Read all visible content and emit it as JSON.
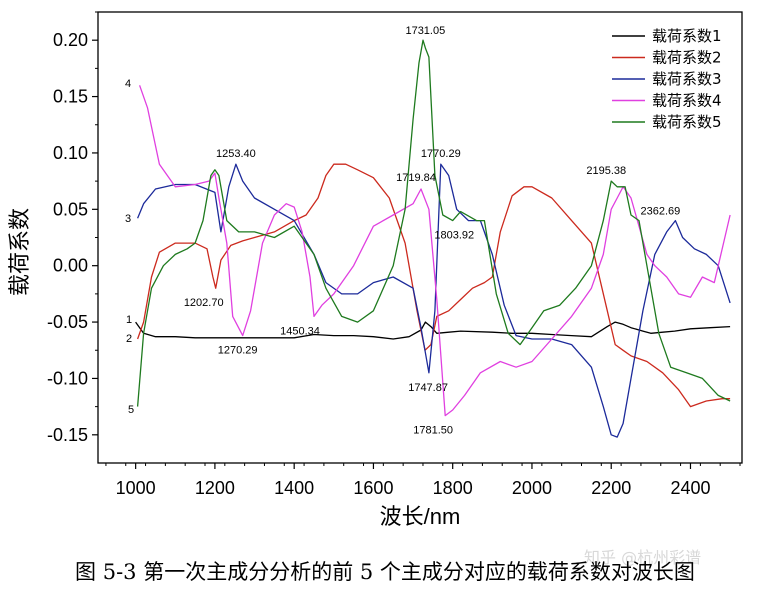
{
  "chart_data": {
    "type": "line",
    "title": "",
    "xlabel": "波长/nm",
    "ylabel": "载荷系数",
    "xlim": [
      905,
      2530
    ],
    "ylim": [
      -0.175,
      0.225
    ],
    "xticks": [
      1000,
      1200,
      1400,
      1600,
      1800,
      2000,
      2200,
      2400
    ],
    "yticks": [
      0.2,
      0.15,
      0.1,
      0.05,
      0.0,
      -0.05,
      -0.1,
      -0.15
    ],
    "ytick_labels": [
      "0.20",
      "0.15",
      "0.10",
      "0.05",
      "0.00",
      "-0.05",
      "-0.10",
      "-0.15"
    ],
    "series": [
      {
        "name": "载荷系数1",
        "color": "#000000",
        "x": [
          1000,
          1020,
          1050,
          1100,
          1150,
          1200,
          1250,
          1300,
          1350,
          1400,
          1450,
          1500,
          1550,
          1600,
          1650,
          1690,
          1720,
          1731,
          1745,
          1760,
          1790,
          1820,
          1900,
          1950,
          2000,
          2050,
          2100,
          2150,
          2190,
          2210,
          2230,
          2250,
          2280,
          2300,
          2330,
          2360,
          2400,
          2450,
          2500
        ],
        "y": [
          -0.05,
          -0.06,
          -0.063,
          -0.063,
          -0.064,
          -0.064,
          -0.064,
          -0.064,
          -0.064,
          -0.064,
          -0.061,
          -0.062,
          -0.062,
          -0.063,
          -0.065,
          -0.063,
          -0.057,
          -0.05,
          -0.054,
          -0.06,
          -0.059,
          -0.058,
          -0.059,
          -0.06,
          -0.06,
          -0.061,
          -0.062,
          -0.063,
          -0.054,
          -0.05,
          -0.052,
          -0.055,
          -0.058,
          -0.06,
          -0.059,
          -0.058,
          -0.056,
          -0.055,
          -0.054
        ]
      },
      {
        "name": "载荷系数2",
        "color": "#cc2a1e",
        "x": [
          1005,
          1020,
          1040,
          1060,
          1100,
          1150,
          1180,
          1195,
          1202,
          1215,
          1240,
          1270,
          1300,
          1350,
          1400,
          1430,
          1460,
          1480,
          1500,
          1530,
          1560,
          1600,
          1640,
          1680,
          1710,
          1730,
          1745,
          1760,
          1790,
          1820,
          1850,
          1880,
          1900,
          1920,
          1950,
          1980,
          2000,
          2050,
          2100,
          2150,
          2190,
          2210,
          2230,
          2250,
          2290,
          2330,
          2370,
          2400,
          2440,
          2480,
          2500
        ],
        "y": [
          -0.065,
          -0.05,
          -0.01,
          0.012,
          0.02,
          0.02,
          0.015,
          -0.01,
          -0.02,
          0.005,
          0.018,
          0.022,
          0.025,
          0.03,
          0.04,
          0.045,
          0.06,
          0.08,
          0.09,
          0.09,
          0.085,
          0.078,
          0.06,
          0.02,
          -0.04,
          -0.075,
          -0.07,
          -0.045,
          -0.04,
          -0.03,
          -0.02,
          -0.015,
          -0.01,
          0.03,
          0.062,
          0.07,
          0.07,
          0.06,
          0.04,
          0.02,
          -0.04,
          -0.07,
          -0.075,
          -0.08,
          -0.085,
          -0.095,
          -0.11,
          -0.125,
          -0.12,
          -0.118,
          -0.118
        ]
      },
      {
        "name": "载荷系数3",
        "color": "#1c2a9a",
        "x": [
          1005,
          1020,
          1050,
          1100,
          1150,
          1200,
          1215,
          1235,
          1253,
          1270,
          1300,
          1350,
          1400,
          1450,
          1480,
          1520,
          1560,
          1600,
          1650,
          1700,
          1720,
          1740,
          1755,
          1770,
          1790,
          1810,
          1840,
          1870,
          1900,
          1930,
          1960,
          2000,
          2050,
          2100,
          2150,
          2180,
          2200,
          2215,
          2230,
          2250,
          2280,
          2310,
          2340,
          2362,
          2380,
          2410,
          2440,
          2470,
          2500
        ],
        "y": [
          0.042,
          0.055,
          0.068,
          0.072,
          0.072,
          0.065,
          0.03,
          0.07,
          0.09,
          0.075,
          0.06,
          0.05,
          0.04,
          0.01,
          -0.015,
          -0.025,
          -0.025,
          -0.015,
          -0.01,
          -0.02,
          -0.055,
          -0.095,
          -0.04,
          0.09,
          0.08,
          0.05,
          0.04,
          0.04,
          0.01,
          -0.035,
          -0.062,
          -0.065,
          -0.065,
          -0.07,
          -0.09,
          -0.125,
          -0.15,
          -0.152,
          -0.14,
          -0.1,
          -0.04,
          0.01,
          0.03,
          0.04,
          0.025,
          0.015,
          0.01,
          0.0,
          -0.033
        ]
      },
      {
        "name": "载荷系数4",
        "color": "#e040e0",
        "x": [
          1010,
          1030,
          1060,
          1100,
          1150,
          1185,
          1200,
          1210,
          1230,
          1245,
          1270,
          1290,
          1320,
          1350,
          1380,
          1400,
          1420,
          1440,
          1450,
          1470,
          1500,
          1550,
          1600,
          1650,
          1700,
          1720,
          1740,
          1760,
          1781,
          1800,
          1830,
          1870,
          1920,
          1960,
          2000,
          2050,
          2100,
          2150,
          2180,
          2200,
          2215,
          2230,
          2250,
          2270,
          2290,
          2310,
          2340,
          2370,
          2400,
          2430,
          2460,
          2500
        ],
        "y": [
          0.16,
          0.14,
          0.09,
          0.07,
          0.072,
          0.075,
          0.082,
          0.06,
          0.02,
          -0.045,
          -0.062,
          -0.04,
          0.02,
          0.045,
          0.055,
          0.052,
          0.03,
          -0.01,
          -0.045,
          -0.035,
          -0.025,
          0.0,
          0.035,
          0.045,
          0.055,
          0.068,
          0.05,
          -0.03,
          -0.133,
          -0.128,
          -0.115,
          -0.095,
          -0.085,
          -0.09,
          -0.085,
          -0.065,
          -0.045,
          -0.02,
          0.01,
          0.05,
          0.06,
          0.07,
          0.06,
          0.035,
          0.01,
          0.0,
          -0.01,
          -0.025,
          -0.028,
          -0.01,
          -0.015,
          0.045
        ]
      },
      {
        "name": "载荷系数5",
        "color": "#1e7a1e",
        "x": [
          1005,
          1020,
          1040,
          1070,
          1100,
          1130,
          1150,
          1170,
          1190,
          1200,
          1210,
          1230,
          1260,
          1300,
          1350,
          1400,
          1450,
          1480,
          1520,
          1560,
          1600,
          1650,
          1680,
          1700,
          1715,
          1725,
          1731,
          1740,
          1755,
          1775,
          1800,
          1820,
          1860,
          1880,
          1910,
          1940,
          1970,
          2000,
          2030,
          2070,
          2110,
          2150,
          2180,
          2200,
          2215,
          2235,
          2250,
          2270,
          2290,
          2320,
          2350,
          2390,
          2430,
          2470,
          2500
        ],
        "y": [
          -0.125,
          -0.06,
          -0.02,
          0.0,
          0.01,
          0.015,
          0.02,
          0.04,
          0.08,
          0.085,
          0.08,
          0.04,
          0.03,
          0.03,
          0.025,
          0.035,
          0.01,
          -0.02,
          -0.045,
          -0.05,
          -0.04,
          0.0,
          0.05,
          0.13,
          0.18,
          0.2,
          0.193,
          0.185,
          0.08,
          0.045,
          0.04,
          0.048,
          0.04,
          0.04,
          -0.025,
          -0.06,
          -0.07,
          -0.055,
          -0.04,
          -0.035,
          -0.02,
          0.0,
          0.04,
          0.075,
          0.07,
          0.07,
          0.045,
          0.04,
          0.0,
          -0.06,
          -0.09,
          -0.095,
          -0.1,
          -0.115,
          -0.12
        ]
      }
    ],
    "legend": {
      "placement": "top-right",
      "entries": [
        "载荷系数1",
        "载荷系数2",
        "载荷系数3",
        "载荷系数4",
        "载荷系数5"
      ]
    },
    "annotations": [
      {
        "text": "1731.05",
        "x": 1731,
        "y": 0.2
      },
      {
        "text": "1253.40",
        "x": 1253,
        "y": 0.09
      },
      {
        "text": "1770.29",
        "x": 1770,
        "y": 0.09
      },
      {
        "text": "1719.84",
        "x": 1720,
        "y": 0.068
      },
      {
        "text": "2195.38",
        "x": 2195,
        "y": 0.075
      },
      {
        "text": "2362.69",
        "x": 2362,
        "y": 0.04
      },
      {
        "text": "1803.92",
        "x": 1804,
        "y": 0.04
      },
      {
        "text": "1202.70",
        "x": 1202,
        "y": -0.02
      },
      {
        "text": "1450.34",
        "x": 1450,
        "y": -0.045
      },
      {
        "text": "1270.29",
        "x": 1270,
        "y": -0.062
      },
      {
        "text": "1747.87",
        "x": 1748,
        "y": -0.095
      },
      {
        "text": "1781.50",
        "x": 1781,
        "y": -0.133
      }
    ],
    "series_number_labels": [
      {
        "text": "4",
        "series": 4
      },
      {
        "text": "3",
        "series": 3
      },
      {
        "text": "1",
        "series": 1
      },
      {
        "text": "2",
        "series": 2
      },
      {
        "text": "5",
        "series": 5
      }
    ],
    "grid": false
  },
  "caption": "图 5-3 第一次主成分分析的前 5 个主成分对应的载荷系数对波长图",
  "watermark": "知乎 @杭州彩谱"
}
